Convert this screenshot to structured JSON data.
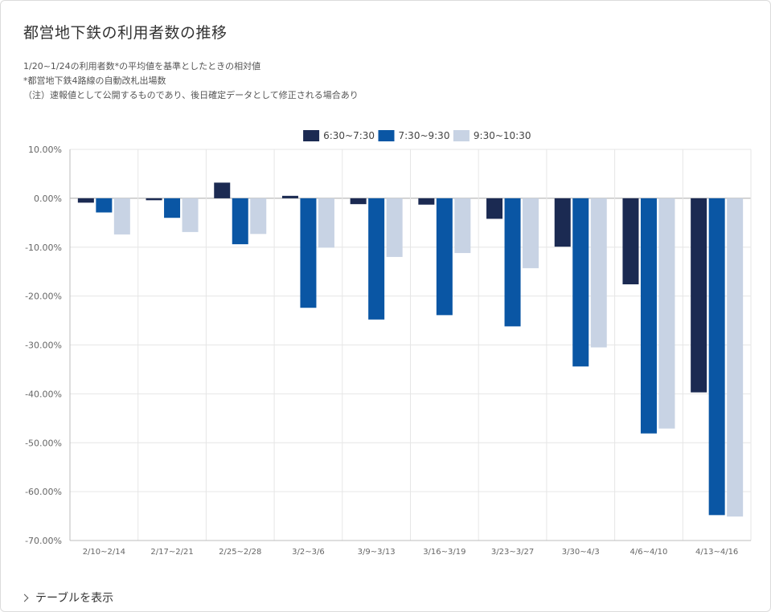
{
  "title": "都営地下鉄の利用者数の推移",
  "notes": [
    "1/20~1/24の利用者数*の平均値を基準としたときの相対値",
    "*都営地下鉄4路線の自動改札出場数",
    "（注）速報値として公開するものであり、後日確定データとして修正される場合あり"
  ],
  "toggle_label": "テーブルを表示",
  "chart_data": {
    "type": "bar",
    "categories": [
      "2/10~2/14",
      "2/17~2/21",
      "2/25~2/28",
      "3/2~3/6",
      "3/9~3/13",
      "3/16~3/19",
      "3/23~3/27",
      "3/30~4/3",
      "4/6~4/10",
      "4/13~4/16"
    ],
    "series": [
      {
        "name": "6:30~7:30",
        "color": "#1b2a52",
        "values": [
          -0.9,
          -0.4,
          3.2,
          0.5,
          -1.2,
          -1.3,
          -4.2,
          -9.9,
          -17.6,
          -39.7
        ]
      },
      {
        "name": "7:30~9:30",
        "color": "#0a56a4",
        "values": [
          -2.9,
          -4.0,
          -9.4,
          -22.4,
          -24.8,
          -23.9,
          -26.2,
          -34.4,
          -48.1,
          -64.8
        ]
      },
      {
        "name": "9:30~10:30",
        "color": "#c8d3e4",
        "values": [
          -7.4,
          -6.9,
          -7.3,
          -10.1,
          -12.0,
          -11.2,
          -14.3,
          -30.5,
          -47.1,
          -65.1
        ]
      }
    ],
    "ylim": [
      -70,
      10
    ],
    "yticks": [
      10,
      0,
      -10,
      -20,
      -30,
      -40,
      -50,
      -60,
      -70
    ],
    "ytick_labels": [
      "10.00%",
      "0.00%",
      "-10.00%",
      "-20.00%",
      "-30.00%",
      "-40.00%",
      "-50.00%",
      "-60.00%",
      "-70.00%"
    ],
    "legend_position": "top-center",
    "grid": true
  }
}
